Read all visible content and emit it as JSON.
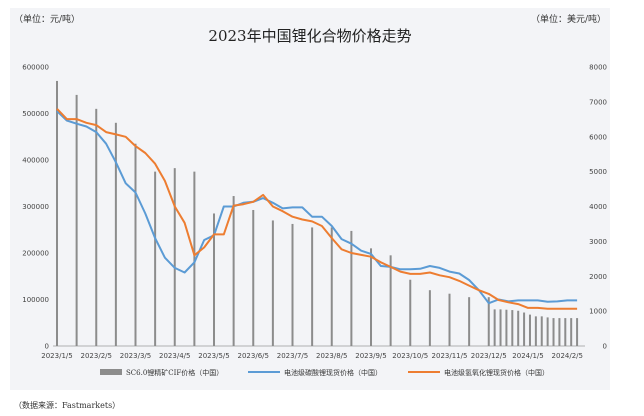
{
  "chart_data": {
    "type": "bar+line",
    "title": "2023年中国锂化合物价格走势",
    "left_unit": "（单位：元/吨）",
    "right_unit": "（单位：美元/吨）",
    "ylim_left": [
      0,
      600000
    ],
    "ylim_right": [
      0,
      8000
    ],
    "left_ticks": [
      "0",
      "100000",
      "200000",
      "300000",
      "400000",
      "500000",
      "600000"
    ],
    "right_ticks": [
      "0",
      "1000",
      "2000",
      "3000",
      "4000",
      "5000",
      "6000",
      "7000",
      "8000"
    ],
    "x_tick_labels": [
      "2023/1/5",
      "2023/2/5",
      "2023/3/5",
      "2023/4/5",
      "2023/5/5",
      "2023/6/5",
      "2023/7/5",
      "2023/8/5",
      "2023/9/5",
      "2023/10/5",
      "2023/11/5",
      "2023/12/5",
      "2024/1/5",
      "2024/2/5"
    ],
    "x_tick_positions": [
      0,
      2,
      4,
      6,
      8,
      10,
      12,
      14,
      16,
      18,
      20,
      22,
      24,
      26
    ],
    "bars": {
      "name": "SC6.0锂精矿CIF价格（中国）",
      "axis": "right",
      "color": "#8c8c8c",
      "x": [
        0,
        1,
        2,
        3,
        4,
        5,
        6,
        7,
        8,
        9,
        10,
        11,
        12,
        13,
        14,
        15,
        16,
        17,
        18,
        19,
        20,
        21,
        22,
        22.3,
        22.6,
        22.9,
        23.2,
        23.5,
        23.8,
        24.1,
        24.4,
        24.7,
        25,
        25.3,
        25.6,
        25.9,
        26.2,
        26.5
      ],
      "values": [
        7600,
        7200,
        6800,
        6400,
        5800,
        5000,
        5100,
        5000,
        3800,
        4300,
        3900,
        3600,
        3500,
        3400,
        3400,
        3300,
        2800,
        2600,
        1900,
        1600,
        1500,
        1400,
        1400,
        1050,
        1050,
        1040,
        1030,
        1010,
        960,
        900,
        850,
        850,
        820,
        800,
        800,
        800,
        800,
        800
      ]
    },
    "series": [
      {
        "name": "电池级碳酸锂现货价格（中国）",
        "axis": "left",
        "color": "#5b9bd5",
        "x": [
          0,
          0.5,
          1,
          1.5,
          2,
          2.5,
          3,
          3.5,
          4,
          4.5,
          5,
          5.5,
          6,
          6.5,
          7,
          7.5,
          8,
          8.5,
          9,
          9.5,
          10,
          10.5,
          11,
          11.5,
          12,
          12.5,
          13,
          13.5,
          14,
          14.5,
          15,
          15.5,
          16,
          16.5,
          17,
          17.5,
          18,
          18.5,
          19,
          19.5,
          20,
          20.5,
          21,
          21.5,
          22,
          22.5,
          23,
          23.5,
          24,
          24.5,
          25,
          25.5,
          26,
          26.5
        ],
        "values": [
          505000,
          485000,
          478000,
          472000,
          460000,
          435000,
          395000,
          350000,
          330000,
          285000,
          232000,
          190000,
          168000,
          158000,
          180000,
          228000,
          238000,
          300000,
          300000,
          308000,
          310000,
          318000,
          308000,
          296000,
          298000,
          298000,
          278000,
          278000,
          258000,
          230000,
          220000,
          205000,
          198000,
          172000,
          170000,
          165000,
          165000,
          166000,
          172000,
          168000,
          160000,
          156000,
          142000,
          120000,
          92000,
          100000,
          96000,
          98000,
          98000,
          98000,
          95000,
          96000,
          98000,
          98000
        ]
      },
      {
        "name": "电池级氢氧化锂现货价格（中国）",
        "axis": "left",
        "color": "#ed7d31",
        "x": [
          0,
          0.5,
          1,
          1.5,
          2,
          2.5,
          3,
          3.5,
          4,
          4.5,
          5,
          5.5,
          6,
          6.5,
          7,
          7.5,
          8,
          8.5,
          9,
          9.5,
          10,
          10.5,
          11,
          11.5,
          12,
          12.5,
          13,
          13.5,
          14,
          14.5,
          15,
          15.5,
          16,
          16.5,
          17,
          17.5,
          18,
          18.5,
          19,
          19.5,
          20,
          20.5,
          21,
          21.5,
          22,
          22.5,
          23,
          23.5,
          24,
          24.5,
          25,
          25.5,
          26,
          26.5
        ],
        "values": [
          510000,
          488000,
          488000,
          480000,
          475000,
          460000,
          455000,
          450000,
          430000,
          415000,
          392000,
          355000,
          300000,
          265000,
          195000,
          212000,
          240000,
          240000,
          302000,
          305000,
          310000,
          325000,
          300000,
          290000,
          278000,
          272000,
          268000,
          258000,
          232000,
          208000,
          200000,
          196000,
          192000,
          180000,
          170000,
          160000,
          155000,
          155000,
          158000,
          152000,
          148000,
          140000,
          130000,
          120000,
          112000,
          99000,
          94000,
          90000,
          82000,
          82000,
          80000,
          80000,
          80000,
          80000
        ]
      }
    ]
  },
  "legend": {
    "bars_label": "SC6.0锂精矿CIF价格（中国）",
    "line1_label": "电池级碳酸锂现货价格（中国）",
    "line2_label": "电池级氢氧化锂现货价格（中国）"
  },
  "source": "（数据来源：Fastmarkets）"
}
